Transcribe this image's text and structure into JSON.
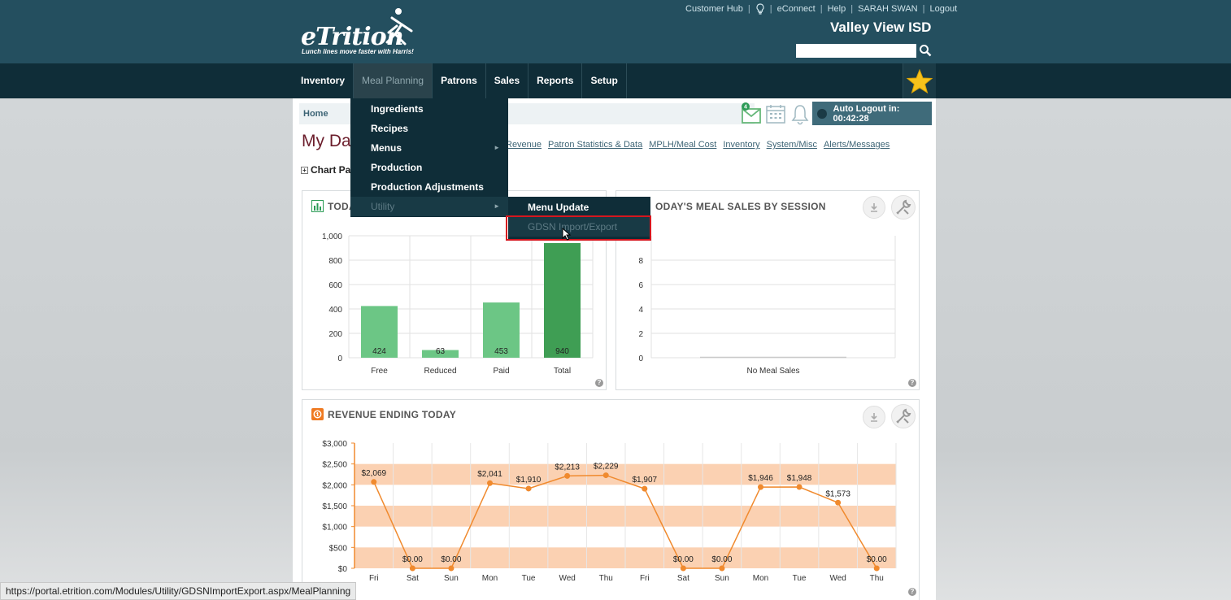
{
  "brand": {
    "logo_text": "eTrition",
    "tagline": "Lunch lines move faster with Harris!"
  },
  "top_links": [
    "Customer Hub",
    "eConnect",
    "Help",
    "SARAH SWAN",
    "Logout"
  ],
  "district_name": "Valley View ISD",
  "search": {
    "value": "",
    "placeholder": ""
  },
  "nav": {
    "items": [
      "Inventory",
      "Meal Planning",
      "Patrons",
      "Sales",
      "Reports",
      "Setup"
    ],
    "active": "Meal Planning"
  },
  "meal_planning_menu": {
    "items": [
      "Ingredients",
      "Recipes",
      "Menus",
      "Production",
      "Production Adjustments",
      "Utility"
    ],
    "utility_submenu": [
      "Menu Update",
      "GDSN Import/Export"
    ]
  },
  "breadcrumb": "Home",
  "notifications": {
    "mail_count": "4"
  },
  "auto_logout": "Auto Logout in: 00:42:28",
  "page_title": "My Da",
  "dashboard_tabs": [
    "Revenue",
    "Patron Statistics & Data",
    "MPLH/Meal Cost",
    "Inventory",
    "System/Misc",
    "Alerts/Messages"
  ],
  "chart_panels_label": "Chart Pa",
  "panels": {
    "meals": {
      "title": "TODA"
    },
    "sessions": {
      "title": "ODAY'S MEAL SALES BY SESSION"
    },
    "revenue": {
      "title": "REVENUE ENDING TODAY"
    }
  },
  "chart_data": [
    {
      "type": "bar",
      "title": "TODA",
      "categories": [
        "Free",
        "Reduced",
        "Paid",
        "Total"
      ],
      "values": [
        424,
        63,
        453,
        940
      ],
      "value_labels": [
        "424",
        "63",
        "453",
        "940"
      ],
      "ylim": [
        0,
        1000
      ],
      "y_ticks": [
        "0",
        "200",
        "400",
        "600",
        "800",
        "1,000"
      ],
      "grid": true,
      "colors": [
        "#6cc685",
        "#6cc685",
        "#6cc685",
        "#3f9e54"
      ]
    },
    {
      "type": "bar",
      "title": "ODAY'S MEAL SALES BY SESSION",
      "categories": [
        "No Meal Sales"
      ],
      "values": [
        0
      ],
      "ylim": [
        0,
        10
      ],
      "y_ticks": [
        "0",
        "2",
        "4",
        "6",
        "8"
      ],
      "grid": true
    },
    {
      "type": "line",
      "title": "REVENUE ENDING TODAY",
      "categories": [
        "Fri",
        "Sat",
        "Sun",
        "Mon",
        "Tue",
        "Wed",
        "Thu",
        "Fri",
        "Sat",
        "Sun",
        "Mon",
        "Tue",
        "Wed",
        "Thu"
      ],
      "values": [
        2069,
        0,
        0,
        2041,
        1910,
        2213,
        2229,
        1907,
        0,
        0,
        1946,
        1948,
        1573,
        0
      ],
      "value_labels": [
        "$2,069",
        "$0.00",
        "$0.00",
        "$2,041",
        "$1,910",
        "$2,213",
        "$2,229",
        "$1,907",
        "$0.00",
        "$0.00",
        "$1,946",
        "$1,948",
        "$1,573",
        "$0.00"
      ],
      "ylim": [
        0,
        3000
      ],
      "y_ticks": [
        "$0",
        "$500",
        "$1,000",
        "$1,500",
        "$2,000",
        "$2,500",
        "$3,000"
      ],
      "plot_bands": [
        [
          0,
          500
        ],
        [
          1000,
          1500
        ],
        [
          2000,
          2500
        ]
      ],
      "grid": true,
      "colors": {
        "line": "#f08a2e",
        "band": "#fbd1b2"
      }
    }
  ],
  "status_url": "https://portal.etrition.com/Modules/Utility/GDSNImportExport.aspx/MealPlanning"
}
